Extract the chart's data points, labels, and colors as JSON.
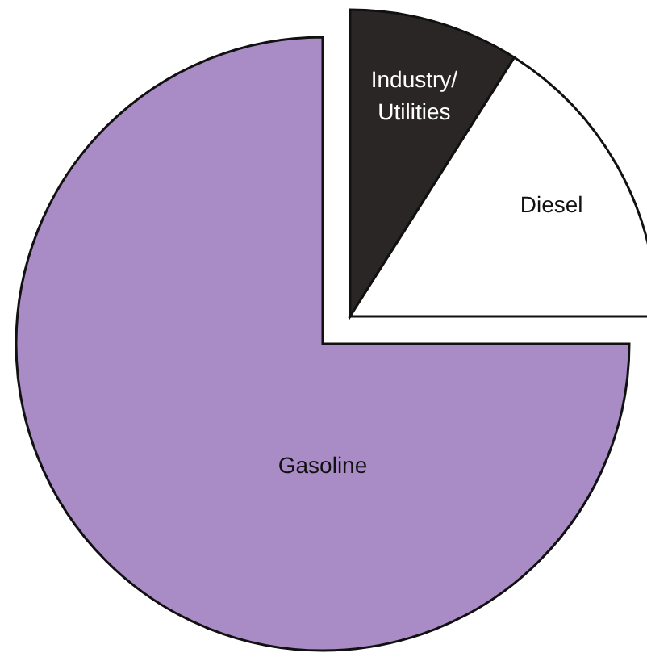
{
  "chart_data": {
    "type": "pie",
    "categories": [
      "Industry/\nUtilities",
      "Diesel",
      "Gasoline"
    ],
    "values": [
      9,
      16,
      75
    ],
    "colors": [
      "#2b2626",
      "#ffffff",
      "#a98bc6"
    ]
  }
}
